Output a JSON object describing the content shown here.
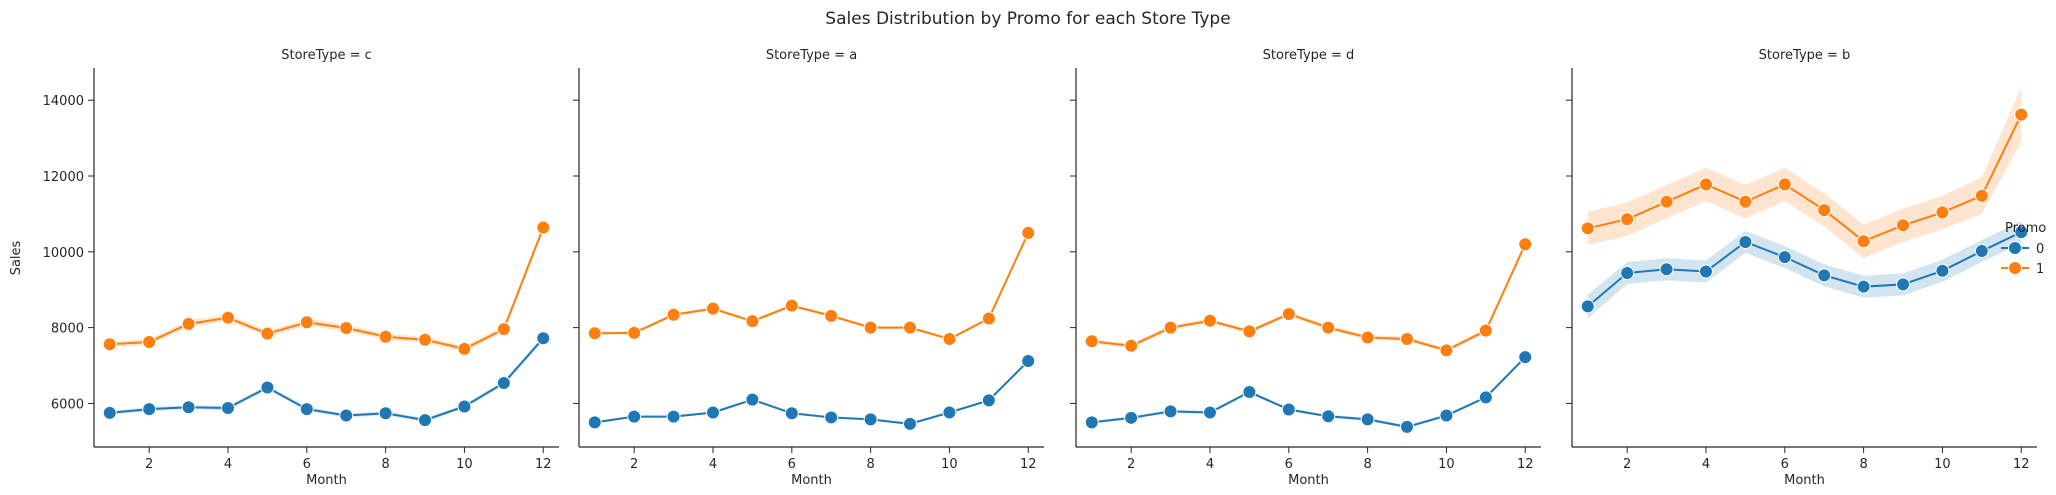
{
  "chart_data": {
    "type": "line",
    "title": "Sales Distribution by Promo for each Store Type",
    "xlabel": "Month",
    "ylabel": "Sales",
    "xlim": [
      0.6,
      12.4
    ],
    "ylim": [
      4850,
      14850
    ],
    "xticks": [
      2,
      4,
      6,
      8,
      10,
      12
    ],
    "yticks": [
      6000,
      8000,
      10000,
      12000,
      14000
    ],
    "x": [
      1,
      2,
      3,
      4,
      5,
      6,
      7,
      8,
      9,
      10,
      11,
      12
    ],
    "legend": {
      "title": "Promo",
      "placement": "right",
      "entries": [
        "0",
        "1"
      ]
    },
    "colors": {
      "0": "#1f77b4",
      "1": "#ff7f0e"
    },
    "panels": [
      {
        "title": "StoreType = c",
        "series": [
          {
            "name": "0",
            "values": [
              5750,
              5850,
              5900,
              5880,
              6420,
              5850,
              5680,
              5740,
              5560,
              5920,
              6540,
              7720
            ],
            "ci": [
              [
                5700,
                5800
              ],
              [
                5800,
                5900
              ],
              [
                5850,
                5950
              ],
              [
                5820,
                5940
              ],
              [
                6370,
                6470
              ],
              [
                5800,
                5900
              ],
              [
                5630,
                5730
              ],
              [
                5690,
                5790
              ],
              [
                5510,
                5610
              ],
              [
                5870,
                5970
              ],
              [
                6480,
                6600
              ],
              [
                7650,
                7790
              ]
            ]
          },
          {
            "name": "1",
            "values": [
              7560,
              7620,
              8100,
              8260,
              7840,
              8140,
              7990,
              7760,
              7680,
              7440,
              7960,
              10640
            ],
            "ci": [
              [
                7480,
                7640
              ],
              [
                7540,
                7700
              ],
              [
                8010,
                8190
              ],
              [
                8170,
                8350
              ],
              [
                7760,
                7920
              ],
              [
                8050,
                8230
              ],
              [
                7900,
                8080
              ],
              [
                7680,
                7840
              ],
              [
                7600,
                7760
              ],
              [
                7360,
                7520
              ],
              [
                7870,
                8050
              ],
              [
                10560,
                10720
              ]
            ]
          }
        ]
      },
      {
        "title": "StoreType = a",
        "series": [
          {
            "name": "0",
            "values": [
              5500,
              5650,
              5650,
              5760,
              6100,
              5740,
              5630,
              5580,
              5460,
              5760,
              6080,
              7120
            ],
            "ci": [
              [
                5470,
                5530
              ],
              [
                5620,
                5680
              ],
              [
                5620,
                5680
              ],
              [
                5730,
                5790
              ],
              [
                6070,
                6130
              ],
              [
                5710,
                5770
              ],
              [
                5600,
                5660
              ],
              [
                5550,
                5610
              ],
              [
                5430,
                5490
              ],
              [
                5730,
                5790
              ],
              [
                6050,
                6110
              ],
              [
                7090,
                7150
              ]
            ]
          },
          {
            "name": "1",
            "values": [
              7850,
              7860,
              8340,
              8500,
              8170,
              8580,
              8310,
              8000,
              8000,
              7700,
              8240,
              10500
            ],
            "ci": [
              [
                7810,
                7890
              ],
              [
                7820,
                7900
              ],
              [
                8300,
                8380
              ],
              [
                8460,
                8540
              ],
              [
                8130,
                8210
              ],
              [
                8540,
                8620
              ],
              [
                8270,
                8350
              ],
              [
                7960,
                8040
              ],
              [
                7960,
                8040
              ],
              [
                7660,
                7740
              ],
              [
                8200,
                8280
              ],
              [
                10460,
                10540
              ]
            ]
          }
        ]
      },
      {
        "title": "StoreType = d",
        "series": [
          {
            "name": "0",
            "values": [
              5500,
              5620,
              5790,
              5760,
              6300,
              5840,
              5660,
              5580,
              5380,
              5680,
              6160,
              7220
            ],
            "ci": [
              [
                5460,
                5540
              ],
              [
                5580,
                5660
              ],
              [
                5750,
                5830
              ],
              [
                5720,
                5800
              ],
              [
                6260,
                6340
              ],
              [
                5800,
                5880
              ],
              [
                5620,
                5700
              ],
              [
                5540,
                5620
              ],
              [
                5340,
                5420
              ],
              [
                5640,
                5720
              ],
              [
                6120,
                6200
              ],
              [
                7180,
                7260
              ]
            ]
          },
          {
            "name": "1",
            "values": [
              7640,
              7520,
              8000,
              8180,
              7900,
              8360,
              8000,
              7740,
              7700,
              7400,
              7920,
              10200
            ],
            "ci": [
              [
                7580,
                7700
              ],
              [
                7460,
                7580
              ],
              [
                7940,
                8060
              ],
              [
                8120,
                8240
              ],
              [
                7840,
                7960
              ],
              [
                8300,
                8420
              ],
              [
                7940,
                8060
              ],
              [
                7680,
                7800
              ],
              [
                7640,
                7760
              ],
              [
                7340,
                7460
              ],
              [
                7860,
                7980
              ],
              [
                10140,
                10260
              ]
            ]
          }
        ]
      },
      {
        "title": "StoreType = b",
        "series": [
          {
            "name": "0",
            "values": [
              8560,
              9440,
              9540,
              9480,
              10260,
              9860,
              9380,
              9080,
              9140,
              9500,
              10020,
              10520
            ],
            "ci": [
              [
                8250,
                8870
              ],
              [
                9150,
                9730
              ],
              [
                9250,
                9830
              ],
              [
                9190,
                9770
              ],
              [
                9970,
                10550
              ],
              [
                9570,
                10150
              ],
              [
                9090,
                9670
              ],
              [
                8790,
                9370
              ],
              [
                8850,
                9430
              ],
              [
                9210,
                9790
              ],
              [
                9730,
                10310
              ],
              [
                10230,
                10810
              ]
            ]
          },
          {
            "name": "1",
            "values": [
              10620,
              10860,
              11320,
              11780,
              11320,
              11780,
              11100,
              10280,
              10700,
              11040,
              11480,
              13620
            ],
            "ci": [
              [
                10180,
                11060
              ],
              [
                10420,
                11300
              ],
              [
                10880,
                11760
              ],
              [
                11340,
                12220
              ],
              [
                10880,
                11760
              ],
              [
                11340,
                12220
              ],
              [
                10660,
                11540
              ],
              [
                9840,
                10720
              ],
              [
                10260,
                11140
              ],
              [
                10600,
                11480
              ],
              [
                11000,
                11960
              ],
              [
                12900,
                14340
              ]
            ]
          }
        ]
      }
    ]
  }
}
